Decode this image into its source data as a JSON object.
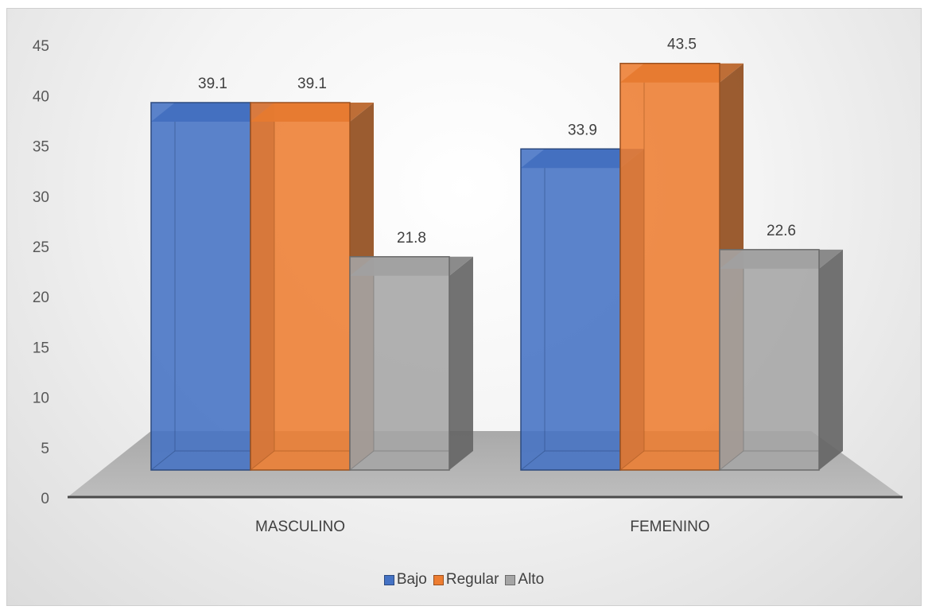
{
  "chart_data": {
    "type": "bar",
    "categories": [
      "MASCULINO",
      "FEMENINO"
    ],
    "series": [
      {
        "name": "Bajo",
        "values": [
          39.1,
          33.9
        ],
        "color": "#4472C4"
      },
      {
        "name": "Regular",
        "values": [
          39.1,
          43.5
        ],
        "color": "#ED7D31"
      },
      {
        "name": "Alto",
        "values": [
          21.8,
          22.6
        ],
        "color": "#A5A5A5"
      }
    ],
    "ylim": [
      0,
      45
    ],
    "yticks": [
      0,
      5,
      10,
      15,
      20,
      25,
      30,
      35,
      40,
      45
    ],
    "legend_position": "bottom",
    "grid": false,
    "style": "3d-column"
  }
}
